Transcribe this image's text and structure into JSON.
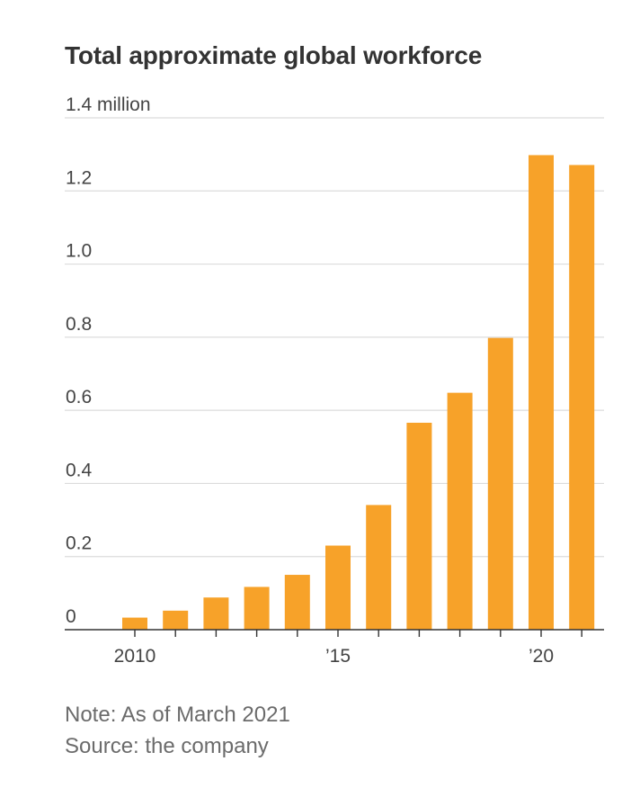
{
  "title": "Total approximate global workforce",
  "note": "Note: As of March 2021",
  "source": "Source: the company",
  "colors": {
    "bar": "#F7A229",
    "grid": "#dcdcdc",
    "axis": "#333333"
  },
  "chart_data": {
    "type": "bar",
    "title": "Total approximate global workforce",
    "ylabel": "",
    "xlabel": "",
    "ylim": [
      0,
      1.4
    ],
    "y_ticks": [
      {
        "value": 0,
        "label": "0"
      },
      {
        "value": 0.2,
        "label": "0.2"
      },
      {
        "value": 0.4,
        "label": "0.4"
      },
      {
        "value": 0.6,
        "label": "0.6"
      },
      {
        "value": 0.8,
        "label": "0.8"
      },
      {
        "value": 1.0,
        "label": "1.0"
      },
      {
        "value": 1.2,
        "label": "1.2"
      },
      {
        "value": 1.4,
        "label": "1.4 million"
      }
    ],
    "categories": [
      2010,
      2011,
      2012,
      2013,
      2014,
      2015,
      2016,
      2017,
      2018,
      2019,
      2020,
      2021
    ],
    "x_tick_labels": [
      {
        "year": 2010,
        "label": "2010"
      },
      {
        "year": 2015,
        "label": "’15"
      },
      {
        "year": 2020,
        "label": "’20"
      }
    ],
    "values": [
      0.033,
      0.052,
      0.088,
      0.117,
      0.15,
      0.23,
      0.341,
      0.566,
      0.648,
      0.798,
      1.298,
      1.271
    ],
    "grid": true
  }
}
